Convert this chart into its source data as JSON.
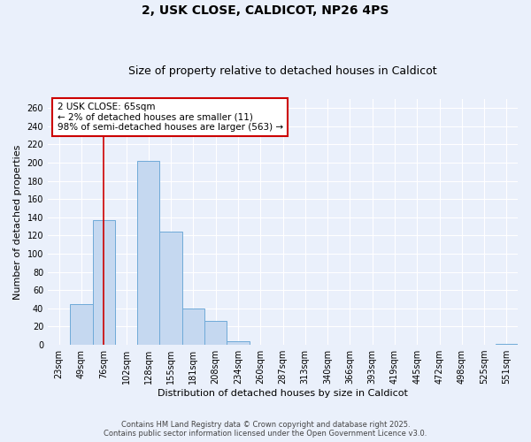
{
  "title1": "2, USK CLOSE, CALDICOT, NP26 4PS",
  "title2": "Size of property relative to detached houses in Caldicot",
  "xlabel": "Distribution of detached houses by size in Caldicot",
  "ylabel": "Number of detached properties",
  "categories": [
    "23sqm",
    "49sqm",
    "76sqm",
    "102sqm",
    "128sqm",
    "155sqm",
    "181sqm",
    "208sqm",
    "234sqm",
    "260sqm",
    "287sqm",
    "313sqm",
    "340sqm",
    "366sqm",
    "393sqm",
    "419sqm",
    "445sqm",
    "472sqm",
    "498sqm",
    "525sqm",
    "551sqm"
  ],
  "values": [
    0,
    45,
    137,
    0,
    202,
    124,
    40,
    26,
    4,
    0,
    0,
    0,
    0,
    0,
    0,
    0,
    0,
    0,
    0,
    0,
    1
  ],
  "bar_color": "#c5d8f0",
  "bar_edge_color": "#6faad8",
  "ylim": [
    0,
    270
  ],
  "yticks": [
    0,
    20,
    40,
    60,
    80,
    100,
    120,
    140,
    160,
    180,
    200,
    220,
    240,
    260
  ],
  "vline_x": 2.0,
  "vline_color": "#cc0000",
  "annotation_text": "2 USK CLOSE: 65sqm\n← 2% of detached houses are smaller (11)\n98% of semi-detached houses are larger (563) →",
  "annotation_box_color": "#cc0000",
  "footer1": "Contains HM Land Registry data © Crown copyright and database right 2025.",
  "footer2": "Contains public sector information licensed under the Open Government Licence v3.0.",
  "bg_color": "#eaf0fb",
  "grid_color": "#ffffff",
  "title_fontsize": 10,
  "subtitle_fontsize": 9,
  "annotation_fontsize": 7.5,
  "axis_label_fontsize": 8,
  "tick_fontsize": 7
}
